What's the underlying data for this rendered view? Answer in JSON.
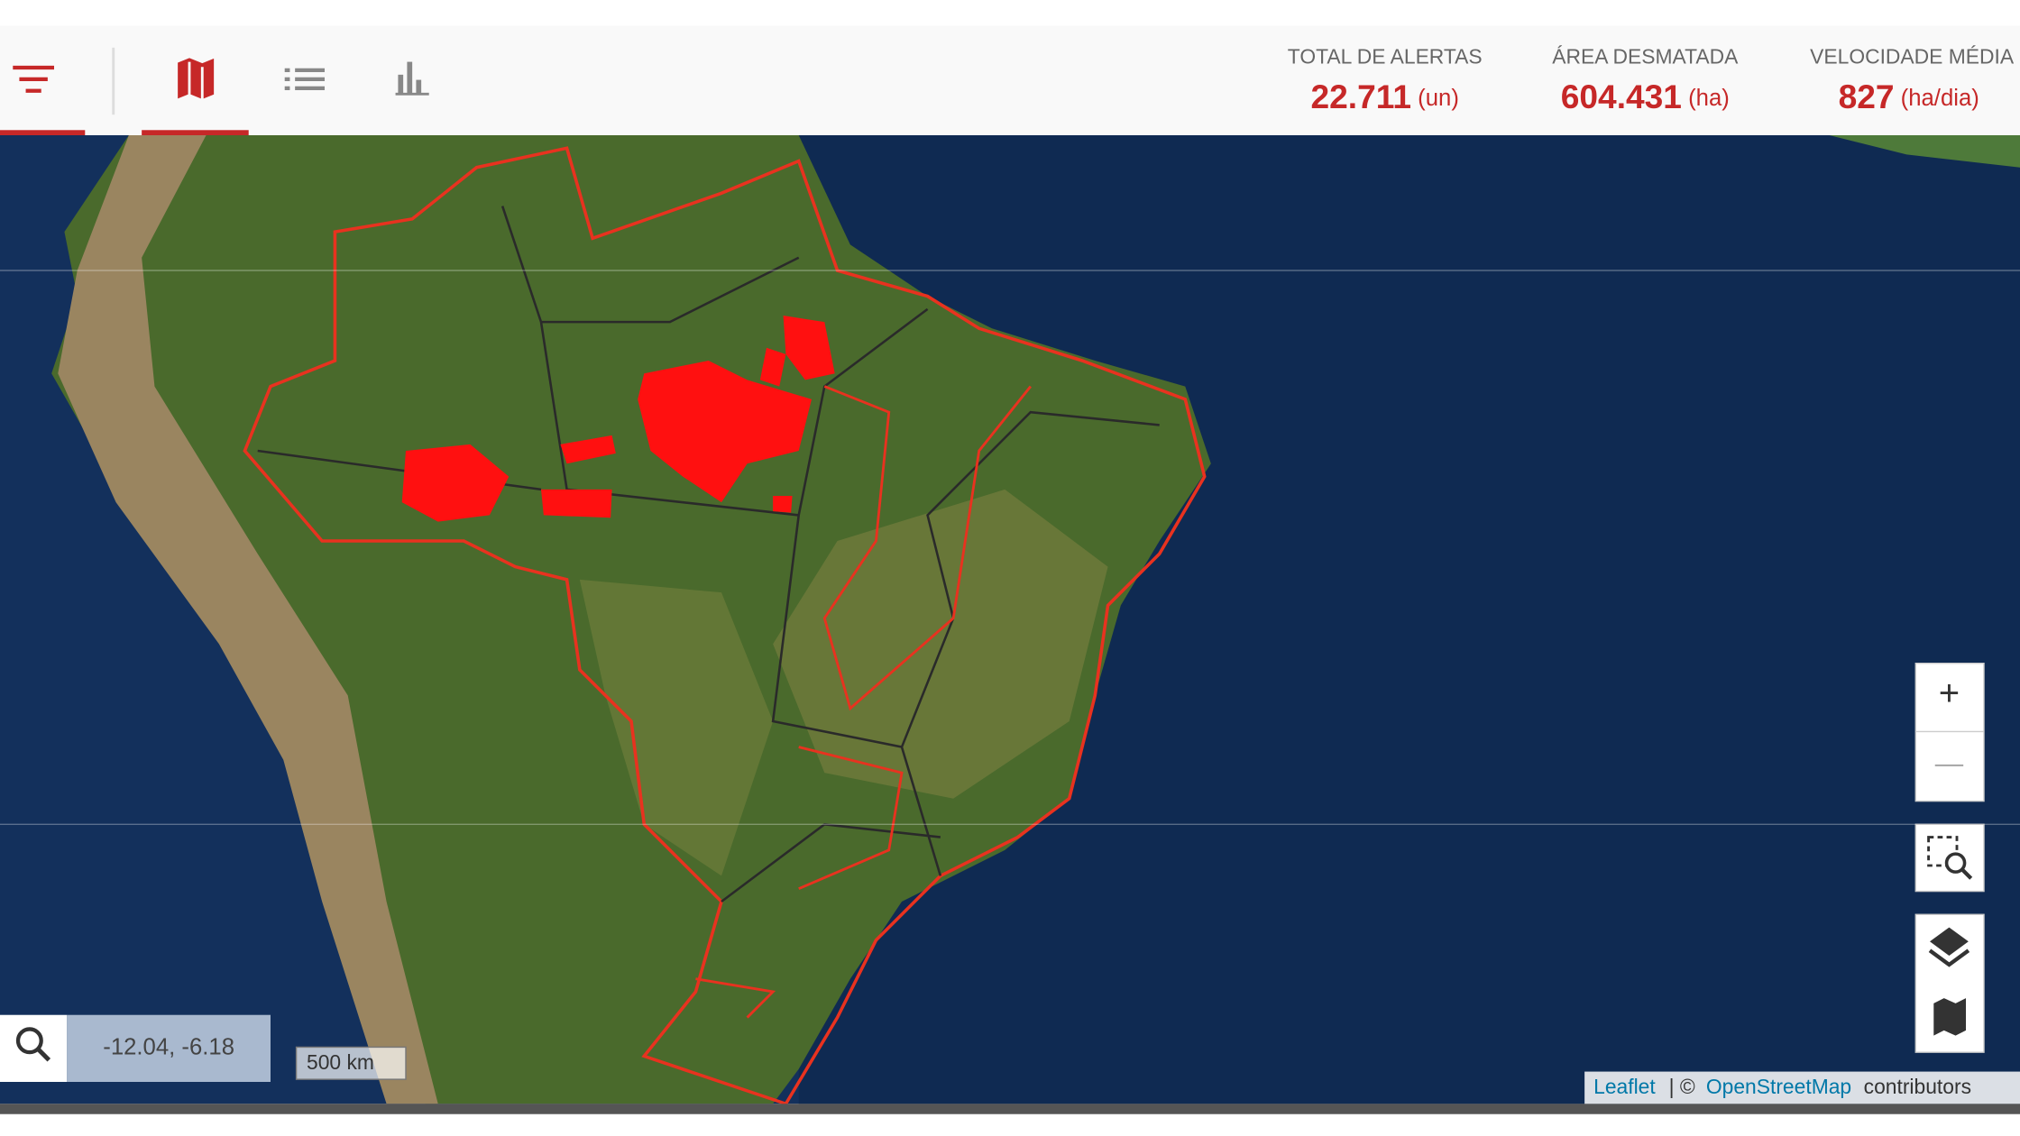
{
  "header": {
    "stats": [
      {
        "label": "TOTAL DE ALERTAS",
        "value": "22.711",
        "unit": "(un)"
      },
      {
        "label": "ÁREA DESMATADA",
        "value": "604.431",
        "unit": "(ha)"
      },
      {
        "label": "VELOCIDADE MÉDIA",
        "value": "827",
        "unit": "(ha/dia)"
      }
    ]
  },
  "map": {
    "coordinates": "-12.04, -6.18",
    "scale": "500 km",
    "zoom_in": "+",
    "zoom_out": "—",
    "attribution": {
      "leaflet": "Leaflet",
      "separator": "| ©",
      "osm": "OpenStreetMap",
      "contributors": "contributors"
    }
  }
}
